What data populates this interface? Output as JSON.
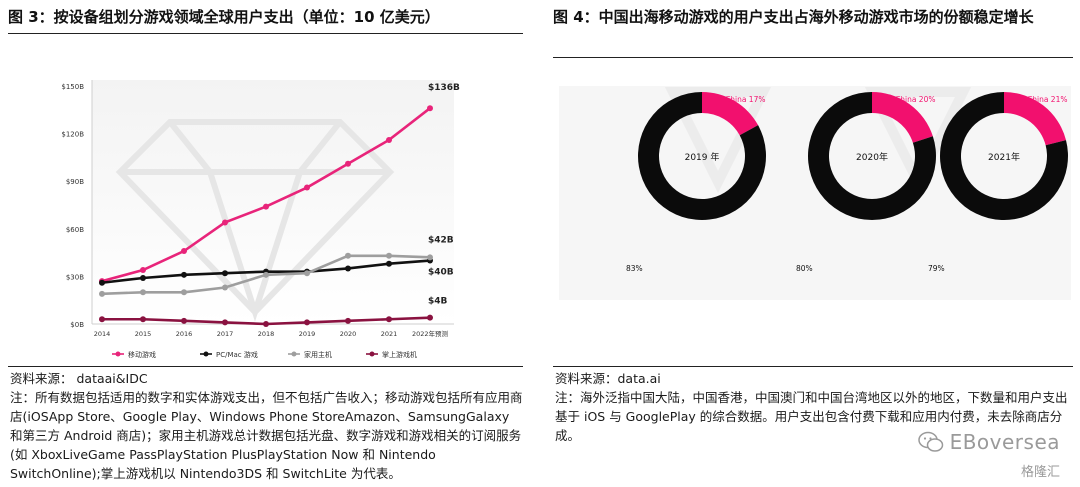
{
  "left": {
    "title": "图 3：按设备组划分游戏领域全球用户支出（单位：10 亿美元）",
    "source": "资料来源：  dataai&IDC",
    "note": "注：所有数据包括适用的数字和实体游戏支出，但不包括广告收入；移动游戏包括所有应用商店(iOSApp Store、Google Play、Windows Phone StoreAmazon、SamsungGalaxy 和第三方 Android 商店)；家用主机游戏总计数据包括光盘、数字游戏和游戏相关的订阅服务(如 XboxLiveGame PassPlayStation PlusPlayStation Now 和 Nintendo SwitchOnline);掌上游戏机以 Nintendo3DS 和 SwitchLite 为代表。"
  },
  "right": {
    "title": "图 4：中国出海移动游戏的用户支出占海外移动游戏市场的份额稳定增长",
    "source": "资料来源：data.ai",
    "note": "注：海外泛指中国大陆，中国香港，中国澳门和中国台湾地区以外的地区，下数量和用户支出基于 iOS 与 GooglePlay 的综合数据。用户支出包含付费下载和应用内付费，未去除商店分成。"
  },
  "watermark": {
    "text": "EBoversea",
    "brand": "格隆汇"
  },
  "chart_data": [
    {
      "type": "line",
      "x": [
        "2014",
        "2015",
        "2016",
        "2017",
        "2018",
        "2019",
        "2020",
        "2021",
        "2022年预测"
      ],
      "ylim": [
        0,
        150
      ],
      "yticks": [
        "$0B",
        "$30B",
        "$60B",
        "$90B",
        "$120B",
        "$150B"
      ],
      "ytick_values": [
        0,
        30,
        60,
        90,
        120,
        150
      ],
      "grid": false,
      "legend_position": "bottom",
      "series": [
        {
          "name": "移动游戏",
          "color": "#e8247a",
          "values": [
            27,
            34,
            46,
            64,
            74,
            86,
            101,
            116,
            136
          ],
          "end_label": "$136B"
        },
        {
          "name": "PC/Mac 游戏",
          "color": "#111111",
          "values": [
            26,
            29,
            31,
            32,
            33,
            33,
            35,
            38,
            40
          ],
          "end_label": "$40B"
        },
        {
          "name": "家用主机",
          "color": "#9e9e9e",
          "values": [
            19,
            20,
            20,
            23,
            31,
            32,
            43,
            43,
            42
          ],
          "end_label": "$42B"
        },
        {
          "name": "掌上游戏机",
          "color": "#8a1240",
          "values": [
            3,
            3,
            2,
            1,
            0,
            1,
            2,
            3,
            4
          ],
          "end_label": "$4B"
        }
      ]
    },
    {
      "type": "pie",
      "title": "2019 年",
      "slices": [
        {
          "label": "China 17%",
          "value": 17,
          "color": "#f2106e"
        },
        {
          "label": "83%",
          "value": 83,
          "color": "#0b0b0b"
        }
      ]
    },
    {
      "type": "pie",
      "title": "2020年",
      "slices": [
        {
          "label": "China 20%",
          "value": 20,
          "color": "#f2106e"
        },
        {
          "label": "80%",
          "value": 80,
          "color": "#0b0b0b"
        }
      ]
    },
    {
      "type": "pie",
      "title": "2021年",
      "slices": [
        {
          "label": "China 21%",
          "value": 21,
          "color": "#f2106e"
        },
        {
          "label": "79%",
          "value": 79,
          "color": "#0b0b0b"
        }
      ]
    }
  ]
}
